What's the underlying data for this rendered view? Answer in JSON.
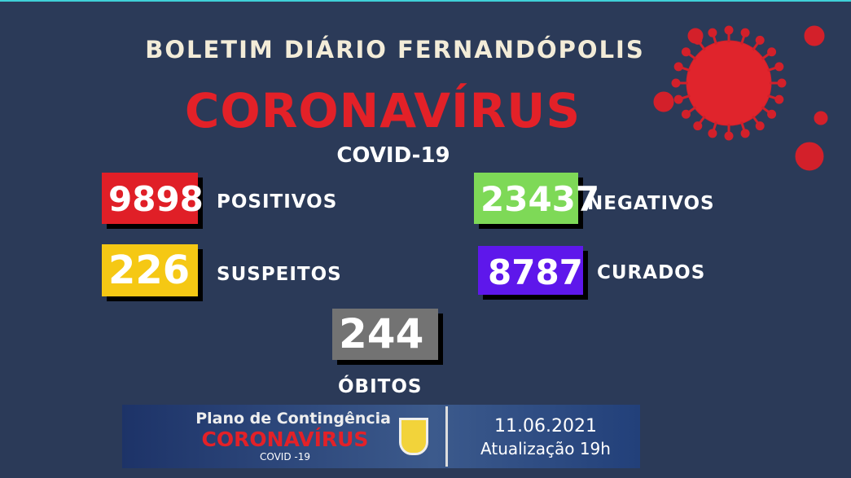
{
  "header": {
    "title": "BOLETIM DIÁRIO FERNANDÓPOLIS",
    "headline": "CORONAVÍRUS",
    "subtitle": "COVID-19"
  },
  "stats": [
    {
      "value": "9898",
      "label": "POSITIVOS",
      "color": "#e01f27"
    },
    {
      "value": "23437",
      "label": "NEGATIVOS",
      "color": "#7ed957"
    },
    {
      "value": "226",
      "label": "SUSPEITOS",
      "color": "#f5c814"
    },
    {
      "value": "8787",
      "label": "CURADOS",
      "color": "#5e17eb"
    },
    {
      "value": "244",
      "label": "ÓBITOS",
      "color": "#737373"
    }
  ],
  "banner": {
    "line1": "Plano de Contingência",
    "line2": "CORONAVÍRUS",
    "line3": "COVID -19",
    "date": "11.06.2021",
    "update": "Atualização 19h"
  },
  "icons": {
    "virus": "coronavirus-icon",
    "crest": "city-crest-icon"
  }
}
